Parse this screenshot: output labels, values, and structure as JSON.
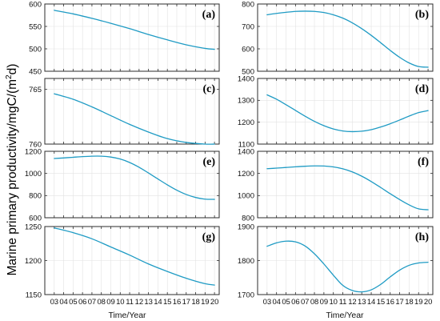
{
  "figure": {
    "ylabel": "Marine primary productivity/mgC/(m",
    "ylabel_sup": "2",
    "ylabel_end": "d)",
    "xlabel": "Time/Year",
    "line_color": "#1f9bc4"
  },
  "chart_data": [
    {
      "type": "line",
      "panel": "(a)",
      "x": [
        3,
        5,
        7,
        9,
        11,
        13,
        15,
        17,
        19,
        20
      ],
      "y": [
        586,
        578,
        568,
        557,
        545,
        532,
        520,
        509,
        501,
        499
      ],
      "ylim": [
        450,
        600
      ],
      "yticks": [
        450,
        500,
        550,
        600
      ],
      "xticks": [
        "03",
        "04",
        "05",
        "06",
        "07",
        "08",
        "09",
        "10",
        "11",
        "12",
        "13",
        "14",
        "15",
        "16",
        "17",
        "18",
        "19",
        "20"
      ],
      "xlim": [
        2,
        20.5
      ],
      "grid": true
    },
    {
      "type": "line",
      "panel": "(b)",
      "x": [
        3,
        4,
        5,
        6,
        7,
        8,
        9,
        10,
        11,
        12,
        13,
        14,
        15,
        16,
        17,
        18,
        19,
        20
      ],
      "y": [
        752,
        758,
        763,
        767,
        768,
        767,
        762,
        752,
        737,
        716,
        690,
        660,
        627,
        593,
        562,
        537,
        521,
        518
      ],
      "ylim": [
        500,
        800
      ],
      "yticks": [
        500,
        600,
        700,
        800
      ],
      "xticks": [
        "03",
        "04",
        "05",
        "06",
        "07",
        "08",
        "09",
        "10",
        "11",
        "12",
        "13",
        "14",
        "15",
        "16",
        "17",
        "18",
        "19",
        "20"
      ],
      "xlim": [
        2,
        20.5
      ],
      "grid": true
    },
    {
      "type": "line",
      "panel": "(c)",
      "x": [
        3,
        5,
        7,
        9,
        11,
        13,
        15,
        17,
        19,
        20
      ],
      "y": [
        764.6,
        764.1,
        763.4,
        762.6,
        761.8,
        761.1,
        760.5,
        760.15,
        760.0,
        760.0
      ],
      "ylim": [
        760,
        766
      ],
      "yticks": [
        760,
        765
      ],
      "xticks": [
        "03",
        "04",
        "05",
        "06",
        "07",
        "08",
        "09",
        "10",
        "11",
        "12",
        "13",
        "14",
        "15",
        "16",
        "17",
        "18",
        "19",
        "20"
      ],
      "xlim": [
        2,
        20.5
      ],
      "grid": true
    },
    {
      "type": "line",
      "panel": "(d)",
      "x": [
        3,
        4,
        5,
        6,
        7,
        8,
        9,
        10,
        11,
        12,
        13,
        14,
        15,
        16,
        17,
        18,
        19,
        20
      ],
      "y": [
        1325,
        1305,
        1280,
        1254,
        1228,
        1204,
        1184,
        1169,
        1160,
        1157,
        1159,
        1166,
        1178,
        1193,
        1210,
        1228,
        1244,
        1253
      ],
      "ylim": [
        1100,
        1400
      ],
      "yticks": [
        1100,
        1200,
        1300,
        1400
      ],
      "xticks": [
        "03",
        "04",
        "05",
        "06",
        "07",
        "08",
        "09",
        "10",
        "11",
        "12",
        "13",
        "14",
        "15",
        "16",
        "17",
        "18",
        "19",
        "20"
      ],
      "xlim": [
        2,
        20.5
      ],
      "grid": true
    },
    {
      "type": "line",
      "panel": "(e)",
      "x": [
        3,
        4,
        5,
        6,
        7,
        8,
        9,
        10,
        11,
        12,
        13,
        14,
        15,
        16,
        17,
        18,
        19,
        20
      ],
      "y": [
        1135,
        1140,
        1146,
        1152,
        1156,
        1156,
        1148,
        1130,
        1099,
        1056,
        1004,
        950,
        897,
        849,
        810,
        783,
        768,
        766
      ],
      "ylim": [
        600,
        1200
      ],
      "yticks": [
        600,
        800,
        1000,
        1200
      ],
      "xticks": [
        "03",
        "04",
        "05",
        "06",
        "07",
        "08",
        "09",
        "10",
        "11",
        "12",
        "13",
        "14",
        "15",
        "16",
        "17",
        "18",
        "19",
        "20"
      ],
      "xlim": [
        2,
        20.5
      ],
      "grid": true
    },
    {
      "type": "line",
      "panel": "(f)",
      "x": [
        3,
        4,
        5,
        6,
        7,
        8,
        9,
        10,
        11,
        12,
        13,
        14,
        15,
        16,
        17,
        18,
        19,
        20
      ],
      "y": [
        1243,
        1248,
        1254,
        1260,
        1265,
        1268,
        1267,
        1259,
        1242,
        1214,
        1175,
        1127,
        1073,
        1017,
        964,
        916,
        880,
        872
      ],
      "ylim": [
        800,
        1400
      ],
      "yticks": [
        800,
        1000,
        1200,
        1400
      ],
      "xticks": [
        "03",
        "04",
        "05",
        "06",
        "07",
        "08",
        "09",
        "10",
        "11",
        "12",
        "13",
        "14",
        "15",
        "16",
        "17",
        "18",
        "19",
        "20"
      ],
      "xlim": [
        2,
        20.5
      ],
      "grid": true
    },
    {
      "type": "line",
      "panel": "(g)",
      "x": [
        3,
        5,
        7,
        9,
        11,
        13,
        15,
        17,
        19,
        20
      ],
      "y": [
        1248,
        1241,
        1232,
        1220,
        1208,
        1195,
        1184,
        1174,
        1166,
        1164
      ],
      "ylim": [
        1150,
        1250
      ],
      "yticks": [
        1150,
        1200,
        1250
      ],
      "xticks": [
        "03",
        "04",
        "05",
        "06",
        "07",
        "08",
        "09",
        "10",
        "11",
        "12",
        "13",
        "14",
        "15",
        "16",
        "17",
        "18",
        "19",
        "20"
      ],
      "xlim": [
        2,
        20.5
      ],
      "grid": true
    },
    {
      "type": "line",
      "panel": "(h)",
      "x": [
        3,
        4,
        5,
        6,
        7,
        8,
        9,
        10,
        11,
        12,
        13,
        14,
        15,
        16,
        17,
        18,
        19,
        20
      ],
      "y": [
        1842,
        1852,
        1857,
        1855,
        1843,
        1820,
        1790,
        1757,
        1727,
        1712,
        1708,
        1714,
        1730,
        1752,
        1772,
        1786,
        1793,
        1795
      ],
      "ylim": [
        1700,
        1900
      ],
      "yticks": [
        1700,
        1800,
        1900
      ],
      "xticks": [
        "03",
        "04",
        "05",
        "06",
        "07",
        "08",
        "09",
        "10",
        "11",
        "12",
        "13",
        "14",
        "15",
        "16",
        "17",
        "18",
        "19",
        "20"
      ],
      "xlim": [
        2,
        20.5
      ],
      "grid": true
    }
  ]
}
